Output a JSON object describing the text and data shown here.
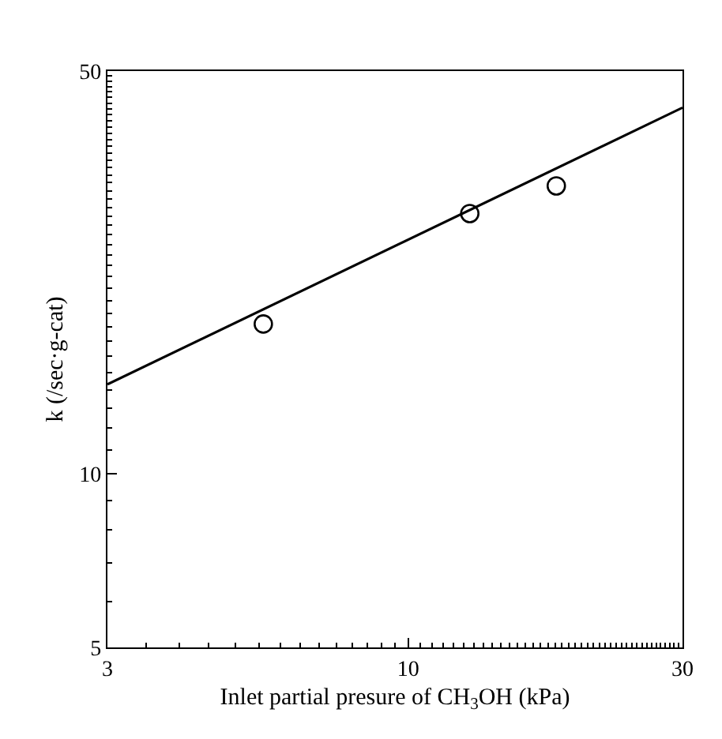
{
  "chart_data": {
    "type": "scatter",
    "xlabel": "Inlet partial presure of CH$_{3}$OH (kPa)",
    "ylabel": "k (/sec·g-cat)",
    "log": "xy",
    "xlim": [
      3,
      30
    ],
    "ylim": [
      5,
      50
    ],
    "xticks": [
      3,
      10,
      30
    ],
    "yticks": [
      5,
      10,
      50
    ],
    "series": [
      {
        "color": "#000000",
        "marker": "circle",
        "x": [
          5.6,
          12.8,
          18.1
        ],
        "values": [
          18.2,
          28.3,
          31.6
        ]
      },
      {
        "type": "line",
        "color": "#000000",
        "marker": "none",
        "line_style": "solid",
        "x": [
          3,
          30
        ],
        "values": [
          14.3,
          43.2
        ]
      }
    ]
  }
}
